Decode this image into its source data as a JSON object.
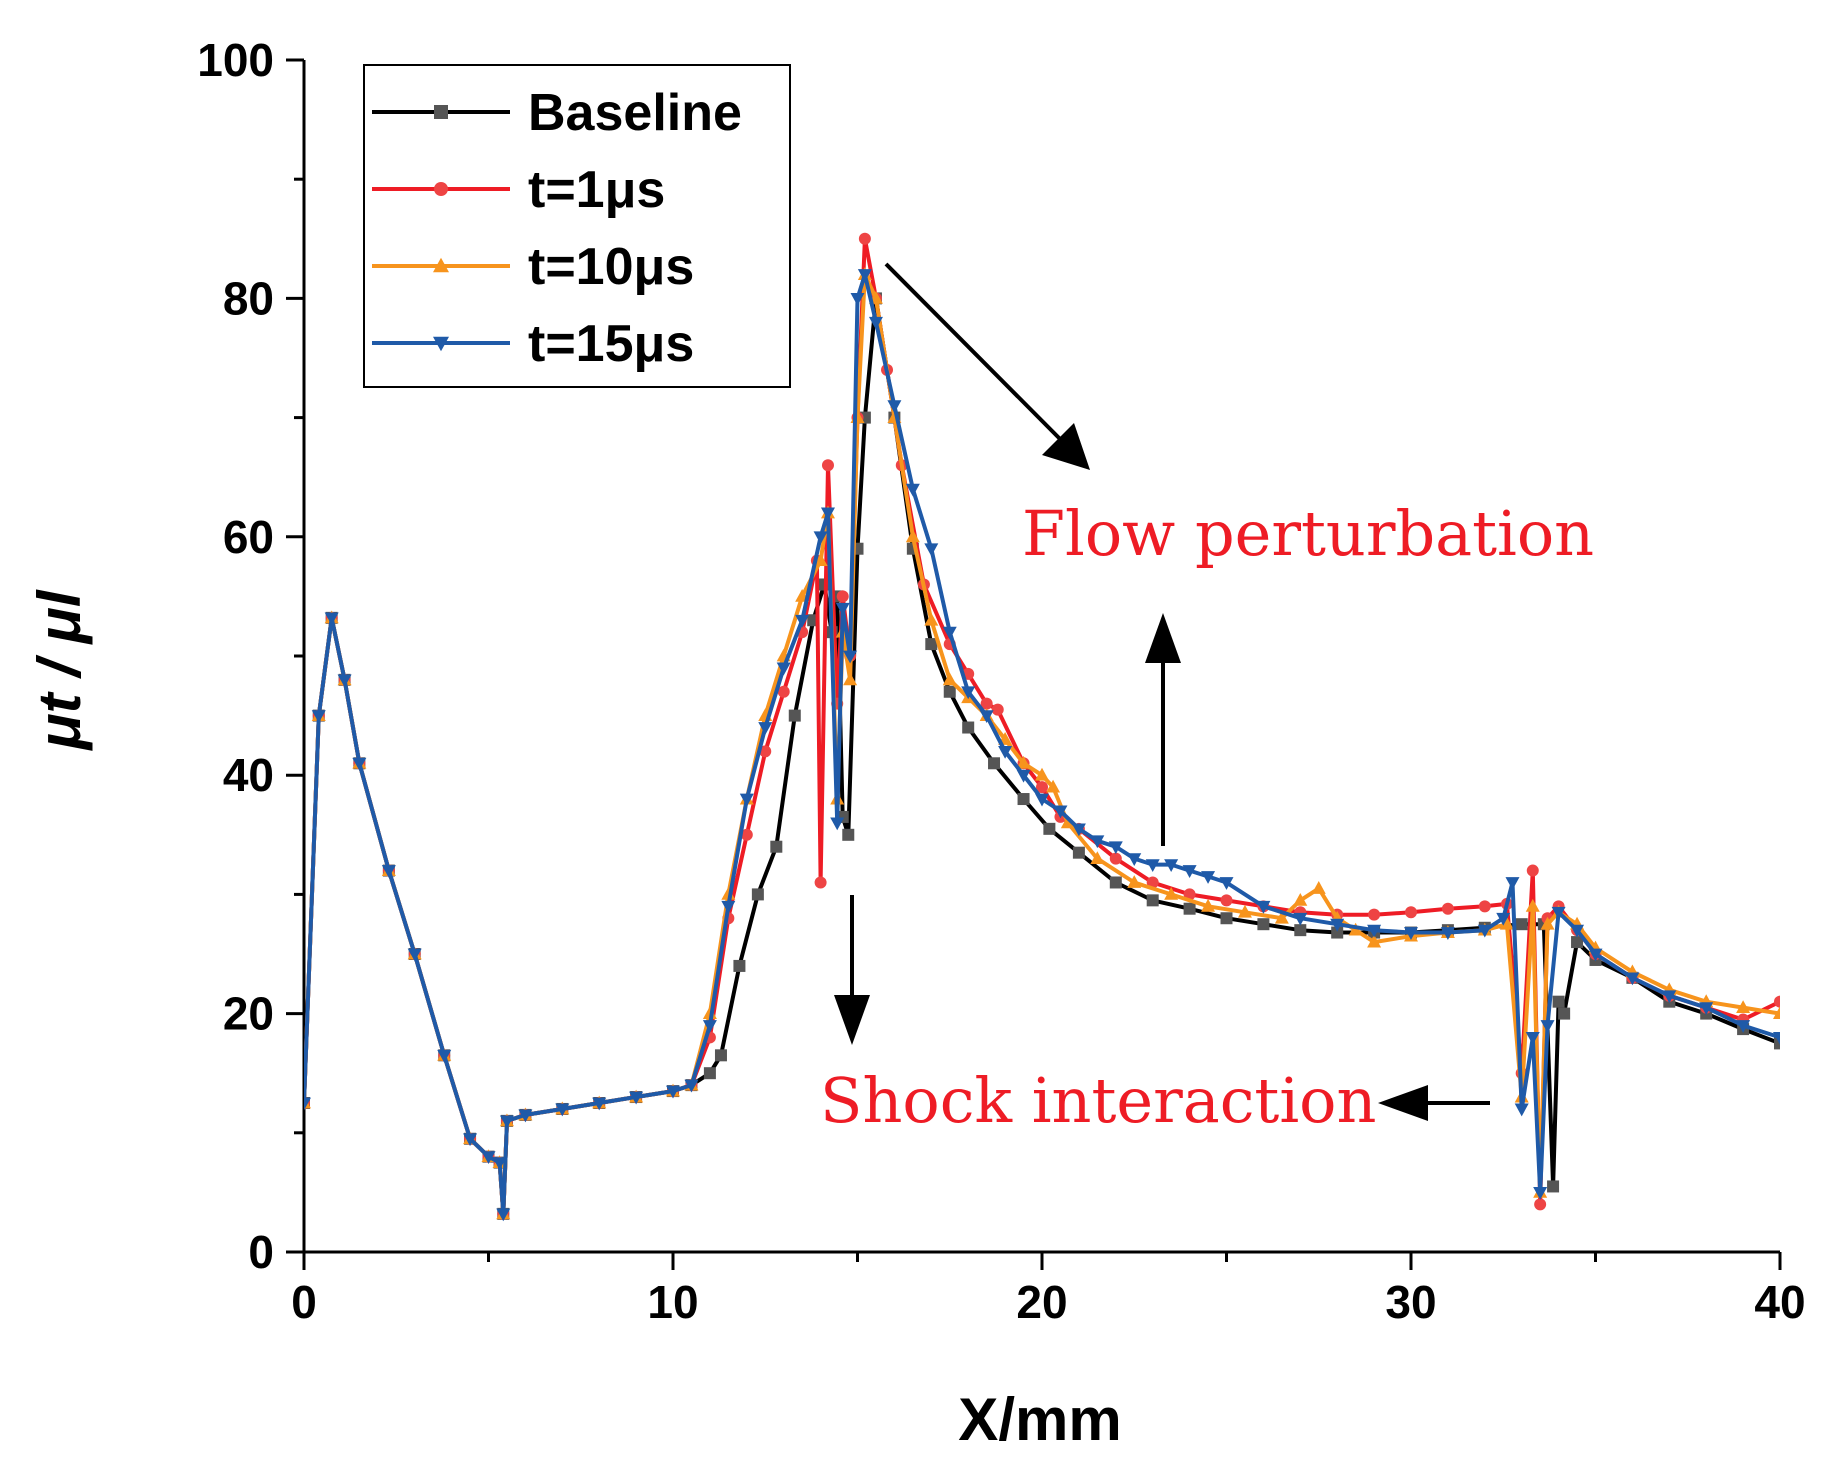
{
  "chart_data": {
    "type": "line",
    "xlabel": "X/mm",
    "ylabel": "μt / μl",
    "xlim": [
      0,
      40
    ],
    "ylim": [
      0,
      100
    ],
    "xticks": [
      "0",
      "10",
      "20",
      "30",
      "40"
    ],
    "yticks": [
      "0",
      "20",
      "40",
      "60",
      "80",
      "100"
    ],
    "legend_position": "top-left",
    "series": [
      {
        "name": "Baseline",
        "color": "#000000",
        "marker": "square",
        "marker_color": "#555555",
        "x": [
          0,
          0.4,
          0.75,
          1.1,
          1.5,
          2.3,
          3.0,
          3.8,
          4.5,
          5.0,
          5.3,
          5.4,
          5.5,
          6.0,
          7.0,
          8.0,
          9.0,
          10.0,
          10.5,
          11.0,
          11.3,
          11.8,
          12.3,
          12.8,
          13.3,
          13.8,
          14.1,
          14.3,
          14.45,
          14.6,
          14.75,
          15.0,
          15.2,
          15.5,
          16.0,
          16.5,
          17.0,
          17.5,
          18.0,
          18.7,
          19.5,
          20.2,
          21.0,
          22.0,
          23.0,
          24.0,
          25.0,
          26.0,
          27.0,
          28.0,
          29.0,
          30.0,
          31.0,
          32.0,
          33.0,
          33.6,
          33.85,
          34.0,
          34.15,
          34.5,
          35.0,
          36.0,
          37.0,
          38.0,
          39.0,
          40.0
        ],
        "y": [
          12.5,
          45,
          53.2,
          48,
          41,
          32,
          25,
          16.5,
          9.5,
          8,
          7.5,
          3.2,
          11,
          11.5,
          12,
          12.5,
          13,
          13.5,
          14,
          15,
          16.5,
          24,
          30,
          34,
          45,
          53,
          56,
          52,
          55,
          36.5,
          35,
          59,
          70,
          80,
          70,
          59,
          51,
          47,
          44,
          41,
          38,
          35.5,
          33.5,
          31,
          29.5,
          28.8,
          28,
          27.5,
          27,
          26.8,
          26.8,
          26.8,
          27,
          27.2,
          27.5,
          27.5,
          5.5,
          21,
          20,
          26,
          24.5,
          23,
          21,
          20,
          18.7,
          17.5
        ]
      },
      {
        "name": "t=1μs",
        "color": "#ee1c25",
        "marker": "circle",
        "marker_color": "#ee4444",
        "x": [
          0,
          0.4,
          0.75,
          1.1,
          1.5,
          2.3,
          3.0,
          3.8,
          4.5,
          5.0,
          5.3,
          5.4,
          5.5,
          6.0,
          7.0,
          8.0,
          9.0,
          10.0,
          10.5,
          11.0,
          11.5,
          12.0,
          12.5,
          13.0,
          13.5,
          13.9,
          14.0,
          14.2,
          14.45,
          14.6,
          14.8,
          15.0,
          15.2,
          15.5,
          15.8,
          16.2,
          16.8,
          17.5,
          18.0,
          18.5,
          18.8,
          19.5,
          20.0,
          20.5,
          21.0,
          22.0,
          23.0,
          24.0,
          25.0,
          26.0,
          27.0,
          28.0,
          29.0,
          30.0,
          31.0,
          32.0,
          32.6,
          33.0,
          33.3,
          33.5,
          33.7,
          34.0,
          34.5,
          35.0,
          36.0,
          37.0,
          38.0,
          39.0,
          40.0
        ],
        "y": [
          12.5,
          45,
          53.2,
          48,
          41,
          32,
          25,
          16.5,
          9.5,
          8,
          7.5,
          3.2,
          11,
          11.5,
          12,
          12.5,
          13,
          13.5,
          14,
          18,
          28,
          35,
          42,
          47,
          52,
          58,
          31,
          66,
          46,
          55,
          50,
          70,
          85,
          80,
          74,
          66,
          56,
          51,
          48.5,
          46,
          45.5,
          41,
          39,
          36.5,
          35.5,
          33,
          31,
          30,
          29.5,
          29,
          28.5,
          28.3,
          28.3,
          28.5,
          28.8,
          29,
          29.2,
          15,
          32,
          4,
          28,
          29,
          27,
          25,
          23,
          21.5,
          20.5,
          19.5,
          21
        ]
      },
      {
        "name": "t=10μs",
        "color": "#f7941d",
        "marker": "triangle-up",
        "marker_color": "#f7941d",
        "x": [
          0,
          0.4,
          0.75,
          1.1,
          1.5,
          2.3,
          3.0,
          3.8,
          4.5,
          5.0,
          5.3,
          5.4,
          5.5,
          6.0,
          7.0,
          8.0,
          9.0,
          10.0,
          10.5,
          11.0,
          11.5,
          12.0,
          12.5,
          13.0,
          13.5,
          14.0,
          14.2,
          14.45,
          14.6,
          14.8,
          15.0,
          15.2,
          15.5,
          16.0,
          16.5,
          17.0,
          17.5,
          18.0,
          18.5,
          19.0,
          19.5,
          20.0,
          20.3,
          20.7,
          21.5,
          22.5,
          23.5,
          24.5,
          25.5,
          26.5,
          27.0,
          27.5,
          28.0,
          28.5,
          29.0,
          30.0,
          31.0,
          32.0,
          32.6,
          33.0,
          33.3,
          33.5,
          33.7,
          34.0,
          34.5,
          35.0,
          36.0,
          37.0,
          38.0,
          39.0,
          40.0
        ],
        "y": [
          12.5,
          45,
          53.2,
          48,
          41,
          32,
          25,
          16.5,
          9.5,
          8,
          7.5,
          3.2,
          11,
          11.5,
          12,
          12.5,
          13,
          13.5,
          14,
          20,
          30,
          38,
          45,
          50,
          55,
          58,
          62,
          38,
          52,
          48,
          70,
          82,
          80,
          70,
          60,
          53,
          48,
          46.5,
          45,
          43,
          41,
          40,
          39,
          36,
          33,
          31,
          30,
          29,
          28.5,
          28,
          29.5,
          30.5,
          28,
          27,
          26,
          26.5,
          26.8,
          27,
          27.5,
          13,
          29,
          5,
          27.5,
          28.5,
          27.5,
          25.5,
          23.5,
          22,
          21,
          20.5,
          20
        ]
      },
      {
        "name": "t=15μs",
        "color": "#1f5aa8",
        "marker": "triangle-down",
        "marker_color": "#1f5aa8",
        "x": [
          0,
          0.4,
          0.75,
          1.1,
          1.5,
          2.3,
          3.0,
          3.8,
          4.5,
          5.0,
          5.3,
          5.4,
          5.5,
          6.0,
          7.0,
          8.0,
          9.0,
          10.0,
          10.5,
          11.0,
          11.5,
          12.0,
          12.5,
          13.0,
          13.5,
          14.0,
          14.2,
          14.45,
          14.6,
          14.8,
          15.0,
          15.2,
          15.5,
          16.0,
          16.5,
          17.0,
          17.5,
          18.0,
          18.5,
          19.0,
          19.5,
          20.0,
          20.5,
          21.0,
          21.5,
          22.0,
          22.5,
          23.0,
          23.5,
          24.0,
          24.5,
          25.0,
          26.0,
          27.0,
          28.0,
          29.0,
          30.0,
          31.0,
          32.0,
          32.5,
          32.75,
          33.0,
          33.3,
          33.5,
          33.7,
          34.0,
          34.5,
          35.0,
          36.0,
          37.0,
          38.0,
          39.0,
          40.0
        ],
        "y": [
          12.5,
          45,
          53.2,
          48,
          41,
          32,
          25,
          16.5,
          9.5,
          8,
          7.5,
          3.2,
          11,
          11.5,
          12,
          12.5,
          13,
          13.5,
          14,
          19,
          29,
          38,
          44,
          49,
          53,
          60,
          62,
          36,
          54,
          50,
          80,
          82,
          78,
          71,
          64,
          59,
          52,
          47,
          45,
          42,
          40,
          38,
          37,
          35.5,
          34.5,
          34,
          33,
          32.5,
          32.5,
          32,
          31.5,
          31,
          29,
          28,
          27.5,
          27,
          26.8,
          26.8,
          27,
          28,
          31,
          12,
          18,
          5,
          19,
          28.5,
          27,
          25,
          23,
          21.5,
          20.5,
          19,
          18
        ]
      }
    ],
    "annotations": [
      {
        "text": "Flow perturbation",
        "color": "#ee1c25"
      },
      {
        "text": "Shock interaction",
        "color": "#ee1c25"
      }
    ]
  }
}
